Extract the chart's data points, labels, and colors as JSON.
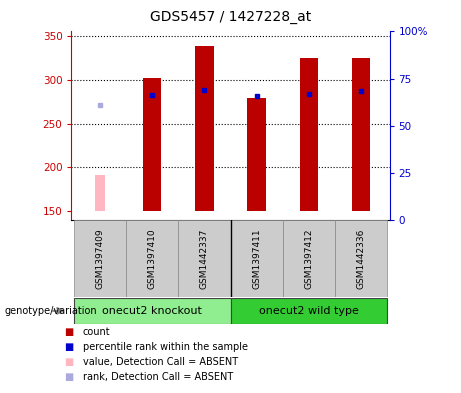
{
  "title": "GDS5457 / 1427228_at",
  "samples": [
    "GSM1397409",
    "GSM1397410",
    "GSM1442337",
    "GSM1397411",
    "GSM1397412",
    "GSM1442336"
  ],
  "count_values": [
    null,
    302,
    338,
    279,
    325,
    325
  ],
  "count_absent": 191,
  "percentile_values": [
    null,
    282,
    288,
    281,
    284,
    287
  ],
  "percentile_absent": 271,
  "groups": [
    {
      "label": "onecut2 knockout",
      "color": "#90EE90",
      "indices": [
        0,
        1,
        2
      ]
    },
    {
      "label": "onecut2 wild type",
      "color": "#33CC33",
      "indices": [
        3,
        4,
        5
      ]
    }
  ],
  "bar_width": 0.35,
  "count_color": "#BB0000",
  "count_absent_color": "#FFB6C1",
  "percentile_color": "#0000CC",
  "percentile_absent_color": "#AAAADD",
  "bg_color": "#FFFFFF",
  "left_axis_color": "#CC0000",
  "right_axis_color": "#0000CC",
  "ylim_left": [
    140,
    355
  ],
  "ylim_right": [
    0,
    100
  ],
  "yticks_left": [
    150,
    200,
    250,
    300,
    350
  ],
  "yticks_right": [
    0,
    25,
    50,
    75,
    100
  ],
  "ytick_labels_right": [
    "0",
    "25",
    "50",
    "75",
    "100%"
  ],
  "genotype_label": "genotype/variation",
  "legend_items": [
    {
      "color": "#BB0000",
      "label": "count"
    },
    {
      "color": "#0000CC",
      "label": "percentile rank within the sample"
    },
    {
      "color": "#FFB6C1",
      "label": "value, Detection Call = ABSENT"
    },
    {
      "color": "#AAAADD",
      "label": "rank, Detection Call = ABSENT"
    }
  ],
  "grid_color": "#000000",
  "base_value": 150
}
